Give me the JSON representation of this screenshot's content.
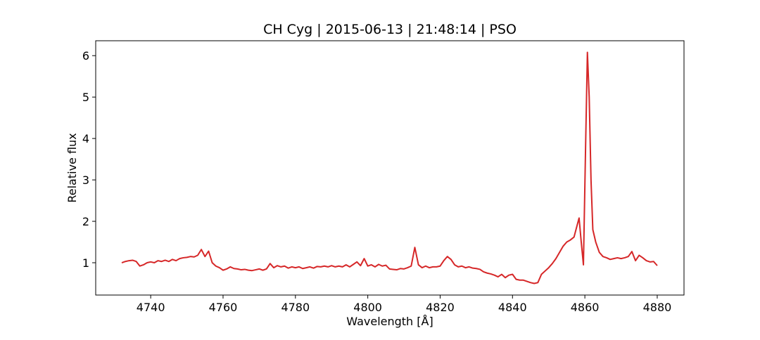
{
  "chart_data": {
    "type": "line",
    "title": "CH Cyg | 2015-06-13 | 21:48:14 | PSO",
    "x_label": "Wavelength [Å]",
    "y_label": "Relative flux",
    "xlim": [
      4724.8,
      4887.4
    ],
    "ylim": [
      0.22,
      6.36
    ],
    "xticks": [
      4740,
      4760,
      4780,
      4800,
      4820,
      4840,
      4860,
      4880
    ],
    "yticks": [
      1,
      2,
      3,
      4,
      5,
      6
    ],
    "grid": false,
    "series": [
      {
        "name": "CH Cyg",
        "color": "#d62728",
        "x": [
          4732,
          4733,
          4734,
          4735,
          4736,
          4737,
          4738,
          4739,
          4740,
          4741,
          4742,
          4743,
          4744,
          4745,
          4746,
          4747,
          4748,
          4749,
          4750,
          4751,
          4752,
          4753,
          4754,
          4755,
          4756,
          4757,
          4758,
          4759,
          4760,
          4761,
          4762,
          4763,
          4764,
          4765,
          4766,
          4767,
          4768,
          4769,
          4770,
          4771,
          4772,
          4773,
          4774,
          4775,
          4776,
          4777,
          4778,
          4779,
          4780,
          4781,
          4782,
          4783,
          4784,
          4785,
          4786,
          4787,
          4788,
          4789,
          4790,
          4791,
          4792,
          4793,
          4794,
          4795,
          4796,
          4797,
          4798,
          4799,
          4800,
          4801,
          4802,
          4803,
          4804,
          4805,
          4806,
          4807,
          4808,
          4809,
          4810,
          4811,
          4812,
          4813,
          4814,
          4815,
          4816,
          4817,
          4818,
          4819,
          4820,
          4821,
          4822,
          4823,
          4824,
          4825,
          4826,
          4827,
          4828,
          4829,
          4830,
          4831,
          4832,
          4833,
          4834,
          4835,
          4836,
          4837,
          4838,
          4839,
          4840,
          4841,
          4842,
          4843,
          4844,
          4845,
          4846,
          4847,
          4848,
          4849,
          4850,
          4851,
          4852,
          4853,
          4854,
          4855,
          4856,
          4857,
          4858,
          4858.4,
          4859,
          4859.6,
          4860.2,
          4860.7,
          4861.2,
          4861.7,
          4862.2,
          4863,
          4864,
          4865,
          4866,
          4867,
          4868,
          4869,
          4870,
          4871,
          4872,
          4873,
          4874,
          4875,
          4876,
          4877,
          4878,
          4879,
          4880
        ],
        "values": [
          1.0,
          1.03,
          1.05,
          1.06,
          1.03,
          0.92,
          0.95,
          1.0,
          1.02,
          1.0,
          1.05,
          1.03,
          1.06,
          1.03,
          1.08,
          1.05,
          1.1,
          1.12,
          1.13,
          1.15,
          1.14,
          1.18,
          1.32,
          1.15,
          1.28,
          1.0,
          0.92,
          0.88,
          0.82,
          0.85,
          0.9,
          0.86,
          0.85,
          0.83,
          0.84,
          0.82,
          0.81,
          0.83,
          0.85,
          0.82,
          0.85,
          0.98,
          0.88,
          0.93,
          0.9,
          0.92,
          0.87,
          0.9,
          0.88,
          0.9,
          0.86,
          0.88,
          0.9,
          0.87,
          0.91,
          0.9,
          0.92,
          0.9,
          0.93,
          0.9,
          0.92,
          0.9,
          0.95,
          0.9,
          0.96,
          1.02,
          0.93,
          1.1,
          0.92,
          0.95,
          0.9,
          0.96,
          0.92,
          0.94,
          0.85,
          0.84,
          0.83,
          0.86,
          0.85,
          0.88,
          0.92,
          1.37,
          0.95,
          0.88,
          0.92,
          0.88,
          0.9,
          0.9,
          0.92,
          1.05,
          1.15,
          1.08,
          0.95,
          0.9,
          0.92,
          0.88,
          0.9,
          0.87,
          0.86,
          0.84,
          0.78,
          0.75,
          0.73,
          0.7,
          0.66,
          0.72,
          0.64,
          0.7,
          0.72,
          0.6,
          0.58,
          0.58,
          0.55,
          0.52,
          0.5,
          0.52,
          0.72,
          0.8,
          0.88,
          0.98,
          1.1,
          1.25,
          1.4,
          1.5,
          1.55,
          1.62,
          1.95,
          2.08,
          1.5,
          0.95,
          3.8,
          6.08,
          5.0,
          3.0,
          1.8,
          1.5,
          1.25,
          1.15,
          1.12,
          1.08,
          1.1,
          1.12,
          1.1,
          1.12,
          1.15,
          1.27,
          1.05,
          1.18,
          1.12,
          1.05,
          1.02,
          1.03,
          0.93
        ]
      }
    ]
  }
}
